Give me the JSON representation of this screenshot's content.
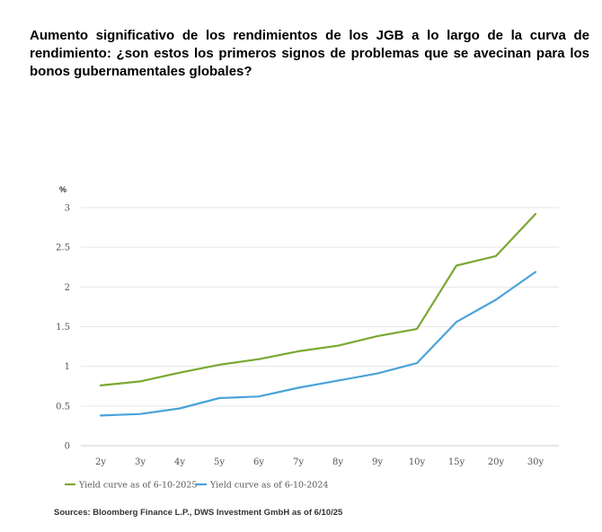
{
  "title": "Aumento significativo de los rendimientos de los JGB a lo largo de la curva de rendimiento: ¿son estos los primeros signos de problemas que se avecinan para los bonos gubernamentales globales?",
  "source": "Sources: Bloomberg Finance L.P., DWS Investment GmbH as of 6/10/25",
  "chart_data": {
    "type": "line",
    "unit_label": "%",
    "categories": [
      "2y",
      "3y",
      "4y",
      "5y",
      "6y",
      "7y",
      "8y",
      "9y",
      "10y",
      "15y",
      "20y",
      "30y"
    ],
    "series": [
      {
        "name": "Yield curve as of 6-10-2025",
        "color": "#7aa832",
        "values": [
          0.76,
          0.81,
          0.92,
          1.02,
          1.09,
          1.19,
          1.26,
          1.38,
          1.47,
          2.27,
          2.39,
          2.92
        ]
      },
      {
        "name": "Yield curve as of 6-10-2024",
        "color": "#4aa3d8",
        "values": [
          0.38,
          0.4,
          0.47,
          0.6,
          0.62,
          0.73,
          0.82,
          0.91,
          1.04,
          1.56,
          1.84,
          2.19
        ]
      }
    ],
    "yticks": [
      "0",
      "0.5",
      "1",
      "1.5",
      "2",
      "2.5",
      "3"
    ],
    "ylim": [
      0,
      3
    ],
    "grid": true,
    "legend_position": "bottom-left"
  }
}
